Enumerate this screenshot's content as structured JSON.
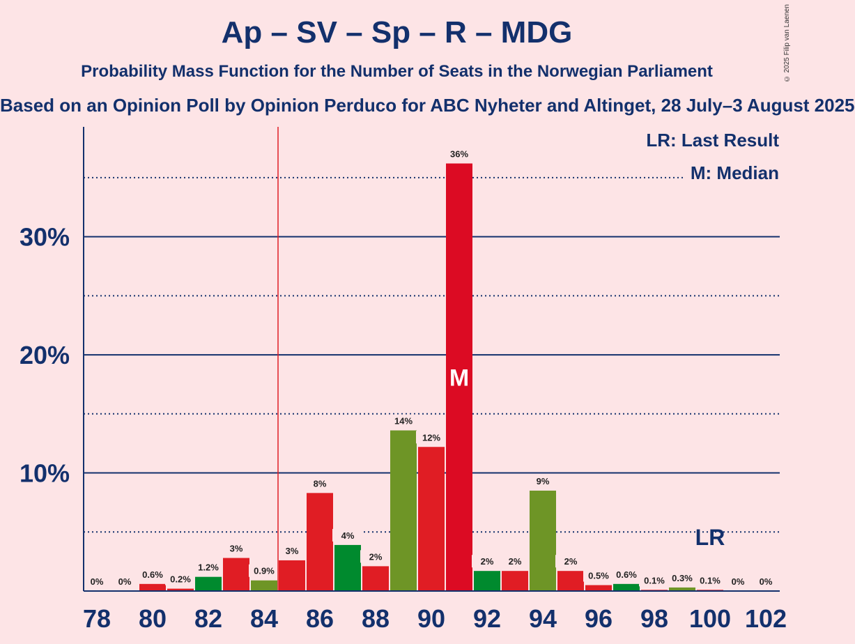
{
  "title": "Ap – SV – Sp – R – MDG",
  "subtitle": "Probability Mass Function for the Number of Seats in the Norwegian Parliament",
  "subtitle2": "Based on an Opinion Poll by Opinion Perduco for ABC Nyheter and Altinget, 28 July–3 August 2025",
  "copyright": "© 2025 Filip van Laenen",
  "chart_data": {
    "type": "bar",
    "x": [
      78,
      79,
      80,
      81,
      82,
      83,
      84,
      85,
      86,
      87,
      88,
      89,
      90,
      91,
      92,
      93,
      94,
      95,
      96,
      97,
      98,
      99,
      100,
      101,
      102
    ],
    "values": [
      0,
      0,
      0.6,
      0.2,
      1.2,
      2.8,
      0.9,
      2.6,
      8.3,
      3.9,
      2.1,
      13.6,
      12.2,
      36.2,
      1.7,
      1.7,
      8.5,
      1.7,
      0.5,
      0.6,
      0.1,
      0.3,
      0.1,
      0,
      0
    ],
    "labels": [
      "0%",
      "0%",
      "0.6%",
      "0.2%",
      "1.2%",
      "3%",
      "0.9%",
      "3%",
      "8%",
      "4%",
      "2%",
      "14%",
      "12%",
      "36%",
      "2%",
      "2%",
      "9%",
      "2%",
      "0.5%",
      "0.6%",
      "0.1%",
      "0.3%",
      "0.1%",
      "0%",
      "0%"
    ],
    "colors": [
      "#e01d24",
      "#e01d24",
      "#e01d24",
      "#e01d24",
      "#008a2e",
      "#e01d24",
      "#6e9526",
      "#e01d24",
      "#e01d24",
      "#008a2e",
      "#e01d24",
      "#6e9526",
      "#e01d24",
      "#dc0b23",
      "#008a2e",
      "#e01d24",
      "#6e9526",
      "#e01d24",
      "#e01d24",
      "#008a2e",
      "#e01d24",
      "#6e9526",
      "#e01d24",
      "#e01d24",
      "#e01d24"
    ],
    "x_ticks": [
      "78",
      "80",
      "82",
      "84",
      "86",
      "88",
      "90",
      "92",
      "94",
      "96",
      "98",
      "100",
      "102"
    ],
    "y_ticks": [
      "10%",
      "20%",
      "30%"
    ],
    "ylim": [
      0,
      39.3
    ],
    "major_grid": [
      10,
      20,
      30
    ],
    "minor_grid": [
      5,
      15,
      25,
      35
    ],
    "majority_line": 84.5,
    "median": 91,
    "median_label": "M",
    "last_result": 100,
    "last_result_label": "LR",
    "legend": [
      "LR: Last Result",
      "M: Median"
    ],
    "text_color": "#13306c",
    "majority_color": "#e01d24"
  }
}
